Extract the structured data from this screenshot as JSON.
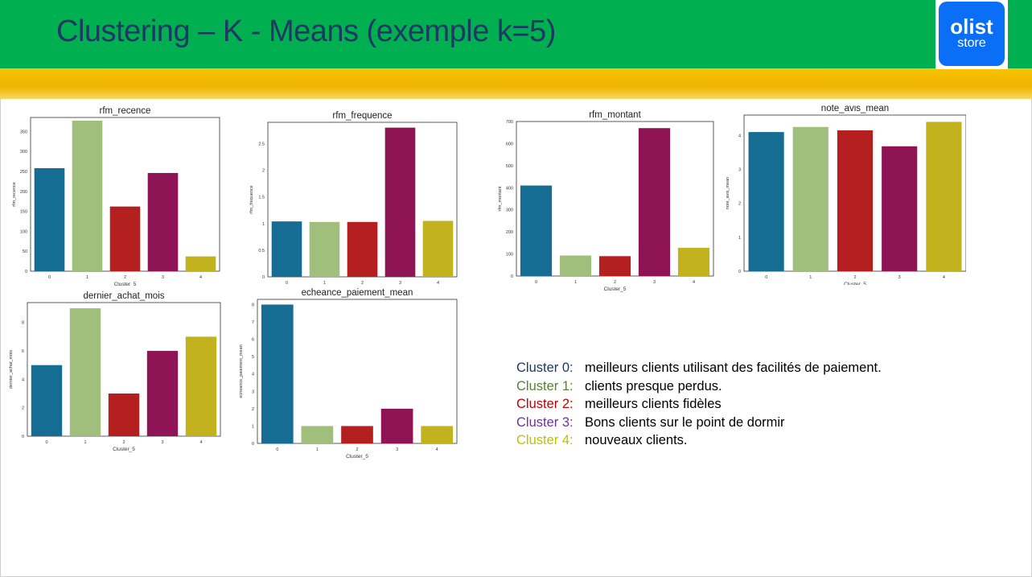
{
  "title": "Clustering – K - Means (exemple k=5)",
  "logo": {
    "name": "olist",
    "sub": "store"
  },
  "theme": {
    "header": "#00af50",
    "band": "#f6c400",
    "title_color": "#1f3864"
  },
  "colors": [
    "#166d93",
    "#a0bf7c",
    "#b41f1f",
    "#8f1456",
    "#c1b21e"
  ],
  "chart_data": [
    {
      "type": "bar",
      "title": "rfm_recence",
      "xlabel": "Cluster_5",
      "ylabel": "rfm_recence",
      "categories": [
        "0",
        "1",
        "2",
        "3",
        "4"
      ],
      "values": [
        258,
        377,
        162,
        246,
        37
      ],
      "ylim": [
        0,
        385
      ],
      "yticks": [
        0,
        50,
        100,
        150,
        200,
        250,
        300,
        350
      ],
      "grid": false
    },
    {
      "type": "bar",
      "title": "rfm_frequence",
      "xlabel": "",
      "ylabel": "rfm_frequence",
      "categories": [
        "0",
        "1",
        "2",
        "3",
        "4"
      ],
      "values": [
        1.04,
        1.03,
        1.03,
        2.8,
        1.05
      ],
      "ylim": [
        0,
        2.9
      ],
      "yticks": [
        0.0,
        0.5,
        1.0,
        1.5,
        2.0,
        2.5
      ],
      "grid": false
    },
    {
      "type": "bar",
      "title": "rfm_montant",
      "xlabel": "Cluster_5",
      "ylabel": "rfm_montant",
      "categories": [
        "0",
        "1",
        "2",
        "3",
        "4"
      ],
      "values": [
        410,
        93,
        90,
        670,
        128
      ],
      "ylim": [
        0,
        700
      ],
      "yticks": [
        0,
        100,
        200,
        300,
        400,
        500,
        600,
        700
      ],
      "grid": false
    },
    {
      "type": "bar",
      "title": "note_avis_mean",
      "xlabel": "Cluster_5",
      "ylabel": "note_avis_mean",
      "categories": [
        "0",
        "1",
        "2",
        "3",
        "4"
      ],
      "values": [
        4.1,
        4.25,
        4.15,
        3.68,
        4.4
      ],
      "ylim": [
        0,
        4.6
      ],
      "yticks": [
        0,
        1,
        2,
        3,
        4
      ],
      "grid": false
    },
    {
      "type": "bar",
      "title": "dernier_achat_mois",
      "xlabel": "Cluster_5",
      "ylabel": "dernier_achat_mois",
      "categories": [
        "0",
        "1",
        "2",
        "3",
        "4"
      ],
      "values": [
        5,
        9,
        3,
        6,
        7
      ],
      "ylim": [
        0,
        9.4
      ],
      "yticks": [
        0,
        2,
        4,
        6,
        8
      ],
      "grid": false
    },
    {
      "type": "bar",
      "title": "echeance_paiement_mean",
      "xlabel": "Cluster_5",
      "ylabel": "echeance_paiement_mean",
      "categories": [
        "0",
        "1",
        "2",
        "3",
        "4"
      ],
      "values": [
        8,
        1,
        1,
        2,
        1
      ],
      "ylim": [
        0,
        8.3
      ],
      "yticks": [
        0,
        1,
        2,
        3,
        4,
        5,
        6,
        7,
        8
      ],
      "grid": false
    }
  ],
  "legend": [
    {
      "key": "Cluster 0:",
      "desc": "meilleurs clients utilisant des facilités de paiement.",
      "color": "#1f3864"
    },
    {
      "key": "Cluster 1:",
      "desc": "clients presque perdus.",
      "color": "#548235"
    },
    {
      "key": "Cluster 2:",
      "desc": "meilleurs clients fidèles",
      "color": "#c00000"
    },
    {
      "key": "Cluster 3:",
      "desc": "Bons clients sur le point de dormir",
      "color": "#7030a0"
    },
    {
      "key": "Cluster 4:",
      "desc": "nouveaux clients.",
      "color": "#bfbf00"
    }
  ]
}
